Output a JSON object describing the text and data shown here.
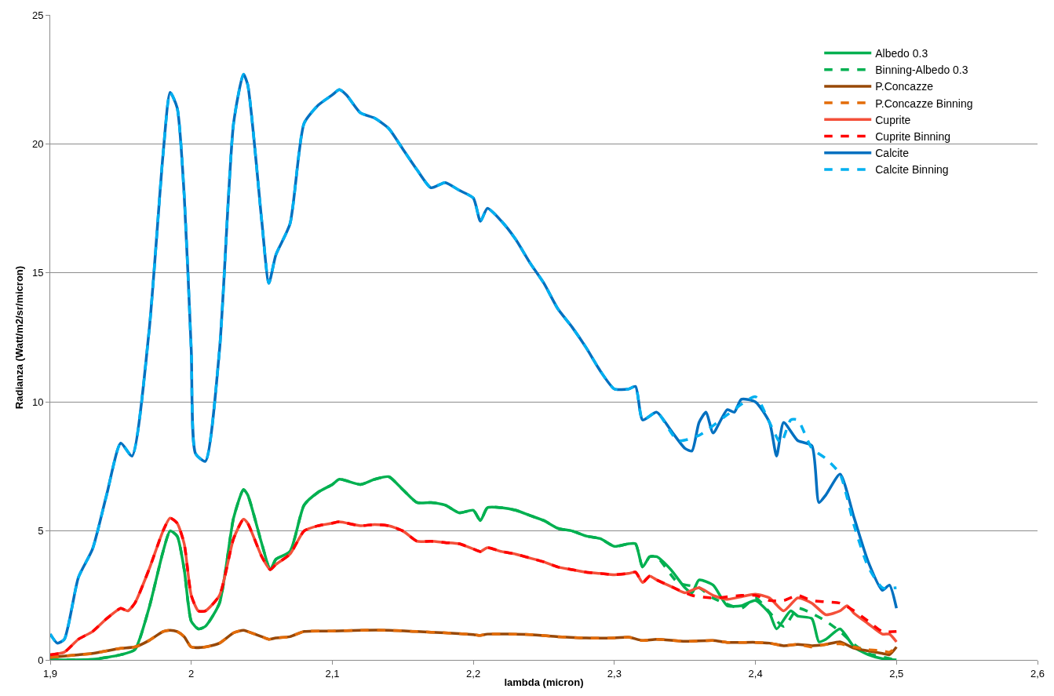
{
  "chart_data": {
    "type": "line",
    "xlabel": "lambda (micron)",
    "ylabel": "Radianza (Watt/m2/sr/micron)",
    "xlim": [
      1.9,
      2.6
    ],
    "xticks": [
      {
        "value": 1.9,
        "label": "1,9"
      },
      2,
      {
        "value": 2.1,
        "label": "2,1"
      },
      {
        "value": 2.2,
        "label": "2,2"
      },
      {
        "value": 2.3,
        "label": "2,3"
      },
      {
        "value": 2.4,
        "label": "2,4"
      },
      {
        "value": 2.5,
        "label": "2,5"
      },
      {
        "value": 2.6,
        "label": "2,6"
      }
    ],
    "ylim": [
      0,
      25
    ],
    "yticks": [
      0,
      5,
      10,
      15,
      20,
      25
    ],
    "grid": "y",
    "legend": "top right",
    "marker": "none",
    "series": [
      {
        "name": "Albedo 0.3",
        "color": "#00b050",
        "line_style": "solid",
        "x": [
          1.9,
          1.93,
          1.95,
          1.96,
          1.97,
          1.98,
          1.985,
          1.99,
          1.995,
          2.0,
          2.005,
          2.01,
          2.02,
          2.03,
          2.037,
          2.04,
          2.05,
          2.056,
          2.06,
          2.07,
          2.08,
          2.09,
          2.1,
          2.105,
          2.12,
          2.13,
          2.14,
          2.15,
          2.16,
          2.17,
          2.18,
          2.19,
          2.2,
          2.205,
          2.21,
          2.22,
          2.23,
          2.24,
          2.25,
          2.26,
          2.27,
          2.28,
          2.29,
          2.3,
          2.31,
          2.315,
          2.32,
          2.325,
          2.33,
          2.34,
          2.35,
          2.355,
          2.36,
          2.37,
          2.38,
          2.39,
          2.4,
          2.41,
          2.415,
          2.425,
          2.43,
          2.44,
          2.445,
          2.45,
          2.46,
          2.47,
          2.48,
          2.49,
          2.5
        ],
        "values": [
          0,
          0.02,
          0.2,
          0.4,
          2.0,
          4.2,
          5.0,
          4.8,
          3.5,
          1.5,
          1.2,
          1.3,
          2.2,
          5.5,
          6.6,
          6.4,
          4.5,
          3.5,
          3.9,
          4.2,
          6.0,
          6.5,
          6.8,
          7.0,
          6.8,
          7.0,
          7.1,
          6.6,
          6.1,
          6.1,
          6.0,
          5.7,
          5.8,
          5.4,
          5.9,
          5.9,
          5.8,
          5.6,
          5.4,
          5.1,
          5.0,
          4.8,
          4.7,
          4.4,
          4.5,
          4.5,
          3.6,
          4.0,
          4.0,
          3.5,
          2.8,
          2.6,
          3.1,
          2.9,
          2.1,
          2.1,
          2.3,
          1.8,
          1.2,
          1.9,
          1.7,
          1.6,
          0.7,
          0.8,
          1.2,
          0.5,
          0.2,
          0.05,
          0.0
        ]
      },
      {
        "name": "Binning-Albedo 0.3",
        "color": "#00b050",
        "line_style": "dashed",
        "x": [
          1.9,
          1.93,
          1.95,
          1.96,
          1.97,
          1.98,
          1.985,
          1.99,
          1.995,
          2.0,
          2.005,
          2.01,
          2.02,
          2.03,
          2.037,
          2.04,
          2.05,
          2.056,
          2.06,
          2.07,
          2.08,
          2.09,
          2.1,
          2.105,
          2.12,
          2.13,
          2.14,
          2.15,
          2.16,
          2.17,
          2.18,
          2.19,
          2.2,
          2.205,
          2.21,
          2.22,
          2.23,
          2.24,
          2.25,
          2.26,
          2.27,
          2.28,
          2.29,
          2.3,
          2.31,
          2.315,
          2.32,
          2.325,
          2.33,
          2.345,
          2.36,
          2.37,
          2.39,
          2.4,
          2.42,
          2.43,
          2.44,
          2.45,
          2.46,
          2.47,
          2.48,
          2.5
        ],
        "values": [
          0,
          0.02,
          0.2,
          0.4,
          2.0,
          4.2,
          5.0,
          4.8,
          3.5,
          1.5,
          1.2,
          1.3,
          2.2,
          5.5,
          6.6,
          6.4,
          4.5,
          3.5,
          3.9,
          4.2,
          6.0,
          6.5,
          6.8,
          7.0,
          6.8,
          7.0,
          7.1,
          6.6,
          6.1,
          6.1,
          6.0,
          5.7,
          5.8,
          5.4,
          5.9,
          5.9,
          5.8,
          5.6,
          5.4,
          5.1,
          5.0,
          4.8,
          4.7,
          4.4,
          4.5,
          4.5,
          3.6,
          4.0,
          4.0,
          3.0,
          2.8,
          2.4,
          2.0,
          2.4,
          1.3,
          2.0,
          1.8,
          1.5,
          1.1,
          0.6,
          0.25,
          0.0
        ]
      },
      {
        "name": "P.Concazze",
        "color": "#984807",
        "line_style": "solid",
        "x": [
          1.9,
          1.92,
          1.93,
          1.94,
          1.95,
          1.96,
          1.97,
          1.98,
          1.985,
          1.99,
          1.995,
          2.0,
          2.01,
          2.02,
          2.03,
          2.037,
          2.04,
          2.05,
          2.055,
          2.06,
          2.07,
          2.08,
          2.1,
          2.12,
          2.14,
          2.16,
          2.18,
          2.2,
          2.205,
          2.21,
          2.24,
          2.26,
          2.28,
          2.3,
          2.31,
          2.32,
          2.33,
          2.35,
          2.37,
          2.38,
          2.4,
          2.41,
          2.42,
          2.43,
          2.44,
          2.45,
          2.46,
          2.47,
          2.48,
          2.49,
          2.495,
          2.5
        ],
        "values": [
          0.1,
          0.2,
          0.25,
          0.35,
          0.45,
          0.5,
          0.75,
          1.1,
          1.15,
          1.1,
          0.9,
          0.5,
          0.5,
          0.65,
          1.05,
          1.15,
          1.1,
          0.9,
          0.8,
          0.85,
          0.9,
          1.1,
          1.12,
          1.15,
          1.15,
          1.1,
          1.05,
          0.98,
          0.95,
          1.0,
          0.98,
          0.9,
          0.85,
          0.85,
          0.88,
          0.75,
          0.8,
          0.72,
          0.75,
          0.68,
          0.68,
          0.65,
          0.55,
          0.6,
          0.55,
          0.6,
          0.7,
          0.45,
          0.35,
          0.25,
          0.2,
          0.5
        ]
      },
      {
        "name": "P.Concazze Binning",
        "color": "#e36c09",
        "line_style": "dashed",
        "x": [
          1.9,
          1.92,
          1.93,
          1.94,
          1.95,
          1.96,
          1.97,
          1.98,
          1.985,
          1.99,
          1.995,
          2.0,
          2.01,
          2.02,
          2.03,
          2.037,
          2.04,
          2.05,
          2.055,
          2.06,
          2.07,
          2.08,
          2.1,
          2.12,
          2.14,
          2.16,
          2.18,
          2.2,
          2.205,
          2.21,
          2.24,
          2.26,
          2.28,
          2.3,
          2.31,
          2.32,
          2.33,
          2.35,
          2.37,
          2.38,
          2.4,
          2.41,
          2.42,
          2.43,
          2.44,
          2.45,
          2.46,
          2.47,
          2.48,
          2.49,
          2.495,
          2.5
        ],
        "values": [
          0.1,
          0.2,
          0.25,
          0.35,
          0.45,
          0.5,
          0.75,
          1.1,
          1.15,
          1.1,
          0.9,
          0.5,
          0.5,
          0.65,
          1.05,
          1.15,
          1.1,
          0.9,
          0.8,
          0.85,
          0.9,
          1.1,
          1.12,
          1.15,
          1.15,
          1.1,
          1.05,
          0.98,
          0.95,
          1.0,
          0.98,
          0.9,
          0.85,
          0.85,
          0.88,
          0.75,
          0.8,
          0.72,
          0.75,
          0.68,
          0.68,
          0.65,
          0.55,
          0.6,
          0.5,
          0.6,
          0.62,
          0.5,
          0.4,
          0.35,
          0.3,
          0.5
        ]
      },
      {
        "name": "Cuprite",
        "color": "#f4503a",
        "line_style": "solid",
        "x": [
          1.9,
          1.91,
          1.92,
          1.93,
          1.94,
          1.95,
          1.955,
          1.96,
          1.97,
          1.98,
          1.985,
          1.99,
          1.995,
          2.0,
          2.005,
          2.01,
          2.02,
          2.03,
          2.037,
          2.04,
          2.05,
          2.056,
          2.06,
          2.07,
          2.08,
          2.09,
          2.1,
          2.105,
          2.12,
          2.13,
          2.14,
          2.15,
          2.16,
          2.17,
          2.18,
          2.19,
          2.2,
          2.205,
          2.21,
          2.22,
          2.23,
          2.24,
          2.25,
          2.26,
          2.27,
          2.28,
          2.29,
          2.3,
          2.31,
          2.315,
          2.32,
          2.325,
          2.33,
          2.34,
          2.35,
          2.36,
          2.37,
          2.38,
          2.39,
          2.4,
          2.41,
          2.42,
          2.43,
          2.44,
          2.45,
          2.46,
          2.465,
          2.47,
          2.48,
          2.49,
          2.495,
          2.5
        ],
        "values": [
          0.2,
          0.3,
          0.8,
          1.1,
          1.6,
          2.0,
          1.9,
          2.2,
          3.5,
          5.0,
          5.5,
          5.3,
          4.5,
          2.5,
          1.9,
          1.9,
          2.5,
          4.7,
          5.45,
          5.3,
          4.0,
          3.5,
          3.7,
          4.1,
          5.0,
          5.2,
          5.3,
          5.35,
          5.2,
          5.25,
          5.2,
          5.0,
          4.6,
          4.6,
          4.55,
          4.5,
          4.3,
          4.2,
          4.35,
          4.2,
          4.1,
          3.95,
          3.8,
          3.6,
          3.5,
          3.4,
          3.35,
          3.3,
          3.35,
          3.4,
          3.0,
          3.25,
          3.1,
          2.85,
          2.6,
          2.8,
          2.5,
          2.35,
          2.45,
          2.55,
          2.4,
          1.9,
          2.4,
          2.2,
          1.75,
          1.9,
          2.1,
          1.8,
          1.4,
          1.0,
          1.0,
          0.7
        ]
      },
      {
        "name": "Cuprite Binning",
        "color": "#ff0000",
        "line_style": "dashed",
        "x": [
          1.9,
          1.91,
          1.92,
          1.93,
          1.94,
          1.95,
          1.955,
          1.96,
          1.97,
          1.98,
          1.985,
          1.99,
          1.995,
          2.0,
          2.005,
          2.01,
          2.02,
          2.03,
          2.037,
          2.04,
          2.05,
          2.056,
          2.06,
          2.07,
          2.08,
          2.09,
          2.1,
          2.105,
          2.12,
          2.13,
          2.14,
          2.15,
          2.16,
          2.17,
          2.18,
          2.19,
          2.2,
          2.205,
          2.21,
          2.22,
          2.23,
          2.24,
          2.25,
          2.26,
          2.27,
          2.28,
          2.29,
          2.3,
          2.31,
          2.315,
          2.32,
          2.325,
          2.33,
          2.34,
          2.355,
          2.37,
          2.39,
          2.4,
          2.41,
          2.42,
          2.43,
          2.44,
          2.45,
          2.46,
          2.47,
          2.48,
          2.49,
          2.5
        ],
        "values": [
          0.2,
          0.3,
          0.8,
          1.1,
          1.6,
          2.0,
          1.9,
          2.2,
          3.5,
          5.0,
          5.5,
          5.3,
          4.5,
          2.5,
          1.9,
          1.9,
          2.5,
          4.7,
          5.45,
          5.3,
          4.0,
          3.5,
          3.7,
          4.1,
          5.0,
          5.2,
          5.3,
          5.35,
          5.2,
          5.25,
          5.2,
          5.0,
          4.6,
          4.6,
          4.55,
          4.5,
          4.3,
          4.2,
          4.35,
          4.2,
          4.1,
          3.95,
          3.8,
          3.6,
          3.5,
          3.4,
          3.35,
          3.3,
          3.35,
          3.4,
          3.0,
          3.25,
          3.1,
          2.85,
          2.5,
          2.4,
          2.5,
          2.5,
          2.3,
          2.3,
          2.5,
          2.3,
          2.25,
          2.2,
          1.9,
          1.5,
          1.1,
          1.1
        ]
      },
      {
        "name": "Calcite",
        "color": "#0070c0",
        "line_style": "solid",
        "x": [
          1.9,
          1.905,
          1.91,
          1.92,
          1.93,
          1.94,
          1.95,
          1.958,
          1.97,
          1.98,
          1.985,
          1.99,
          1.995,
          2.0,
          2.003,
          2.01,
          2.02,
          2.03,
          2.037,
          2.04,
          2.05,
          2.055,
          2.06,
          2.07,
          2.08,
          2.09,
          2.1,
          2.105,
          2.11,
          2.12,
          2.13,
          2.14,
          2.15,
          2.16,
          2.17,
          2.18,
          2.19,
          2.2,
          2.205,
          2.21,
          2.22,
          2.23,
          2.24,
          2.25,
          2.26,
          2.27,
          2.28,
          2.29,
          2.3,
          2.31,
          2.315,
          2.32,
          2.33,
          2.34,
          2.35,
          2.355,
          2.36,
          2.365,
          2.37,
          2.38,
          2.385,
          2.39,
          2.4,
          2.41,
          2.415,
          2.42,
          2.43,
          2.44,
          2.445,
          2.45,
          2.46,
          2.47,
          2.48,
          2.49,
          2.495,
          2.5
        ],
        "values": [
          1.0,
          0.65,
          0.8,
          3.2,
          4.3,
          6.4,
          8.4,
          7.9,
          12.7,
          19.6,
          22.0,
          21.4,
          18.0,
          12.0,
          8.0,
          7.7,
          12.0,
          20.8,
          22.7,
          22.3,
          17.0,
          14.6,
          15.7,
          16.9,
          20.8,
          21.5,
          21.9,
          22.1,
          21.9,
          21.2,
          21.0,
          20.6,
          19.8,
          19.0,
          18.3,
          18.5,
          18.2,
          17.9,
          17.0,
          17.5,
          17.0,
          16.3,
          15.4,
          14.6,
          13.6,
          12.9,
          12.1,
          11.2,
          10.5,
          10.5,
          10.6,
          9.3,
          9.6,
          8.9,
          8.2,
          8.1,
          9.2,
          9.6,
          8.8,
          9.7,
          9.6,
          10.1,
          10.0,
          9.2,
          7.9,
          9.2,
          8.5,
          8.3,
          6.1,
          6.4,
          7.2,
          5.5,
          3.8,
          2.7,
          2.9,
          2.0
        ]
      },
      {
        "name": "Calcite Binning",
        "color": "#00b0f0",
        "line_style": "dashed",
        "x": [
          1.9,
          1.905,
          1.91,
          1.92,
          1.93,
          1.94,
          1.95,
          1.958,
          1.97,
          1.98,
          1.985,
          1.99,
          1.995,
          2.0,
          2.003,
          2.01,
          2.02,
          2.03,
          2.037,
          2.04,
          2.05,
          2.055,
          2.06,
          2.07,
          2.08,
          2.09,
          2.1,
          2.105,
          2.11,
          2.12,
          2.13,
          2.14,
          2.15,
          2.16,
          2.17,
          2.18,
          2.19,
          2.2,
          2.205,
          2.21,
          2.22,
          2.23,
          2.24,
          2.25,
          2.26,
          2.27,
          2.28,
          2.29,
          2.3,
          2.31,
          2.315,
          2.32,
          2.33,
          2.345,
          2.36,
          2.38,
          2.4,
          2.41,
          2.418,
          2.425,
          2.43,
          2.44,
          2.45,
          2.46,
          2.47,
          2.48,
          2.49,
          2.5
        ],
        "values": [
          1.0,
          0.65,
          0.8,
          3.2,
          4.3,
          6.4,
          8.4,
          7.9,
          12.7,
          19.6,
          22.0,
          21.4,
          18.0,
          12.0,
          8.0,
          7.7,
          12.0,
          20.8,
          22.7,
          22.3,
          17.0,
          14.6,
          15.7,
          16.9,
          20.8,
          21.5,
          21.9,
          22.1,
          21.9,
          21.2,
          21.0,
          20.6,
          19.8,
          19.0,
          18.3,
          18.5,
          18.2,
          17.9,
          17.0,
          17.5,
          17.0,
          16.3,
          15.4,
          14.6,
          13.6,
          12.9,
          12.1,
          11.2,
          10.5,
          10.5,
          10.6,
          9.3,
          9.6,
          8.5,
          8.7,
          9.5,
          10.2,
          9.2,
          8.4,
          9.3,
          9.3,
          8.2,
          7.8,
          7.2,
          5.2,
          3.6,
          2.8,
          2.8
        ]
      }
    ]
  }
}
